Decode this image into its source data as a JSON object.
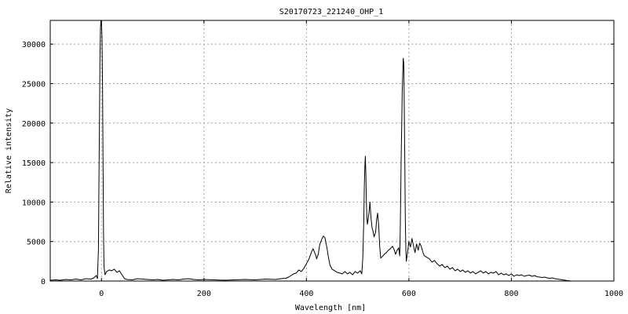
{
  "chart_data": {
    "type": "line",
    "title": "S20170723_221240_OHP_1",
    "xlabel": "Wavelength [nm]",
    "ylabel": "Relative intensity",
    "xlim": [
      -100,
      1000
    ],
    "ylim": [
      0,
      33000
    ],
    "grid": true,
    "x_ticks": [
      0,
      200,
      400,
      600,
      800,
      1000
    ],
    "y_ticks": [
      0,
      5000,
      10000,
      15000,
      20000,
      25000,
      30000
    ],
    "series": [
      {
        "color": "#000000",
        "points": [
          [
            -100,
            100
          ],
          [
            -90,
            150
          ],
          [
            -80,
            100
          ],
          [
            -70,
            200
          ],
          [
            -60,
            150
          ],
          [
            -50,
            250
          ],
          [
            -40,
            150
          ],
          [
            -30,
            300
          ],
          [
            -20,
            250
          ],
          [
            -15,
            400
          ],
          [
            -10,
            700
          ],
          [
            -8,
            300
          ],
          [
            -6,
            4000
          ],
          [
            -5,
            12000
          ],
          [
            -4,
            20000
          ],
          [
            -3,
            28000
          ],
          [
            -2,
            32000
          ],
          [
            -1,
            33000
          ],
          [
            0,
            32500
          ],
          [
            1,
            31000
          ],
          [
            2,
            25000
          ],
          [
            3,
            16000
          ],
          [
            4,
            6000
          ],
          [
            5,
            1800
          ],
          [
            7,
            800
          ],
          [
            10,
            1200
          ],
          [
            15,
            1400
          ],
          [
            20,
            1300
          ],
          [
            25,
            1500
          ],
          [
            30,
            1100
          ],
          [
            35,
            1300
          ],
          [
            40,
            800
          ],
          [
            45,
            300
          ],
          [
            50,
            200
          ],
          [
            60,
            150
          ],
          [
            70,
            300
          ],
          [
            80,
            250
          ],
          [
            90,
            200
          ],
          [
            100,
            150
          ],
          [
            110,
            200
          ],
          [
            120,
            100
          ],
          [
            130,
            150
          ],
          [
            140,
            200
          ],
          [
            150,
            150
          ],
          [
            160,
            250
          ],
          [
            170,
            300
          ],
          [
            180,
            200
          ],
          [
            190,
            150
          ],
          [
            200,
            200
          ],
          [
            220,
            150
          ],
          [
            240,
            100
          ],
          [
            260,
            150
          ],
          [
            280,
            200
          ],
          [
            300,
            150
          ],
          [
            320,
            250
          ],
          [
            340,
            200
          ],
          [
            350,
            300
          ],
          [
            360,
            350
          ],
          [
            365,
            500
          ],
          [
            370,
            700
          ],
          [
            375,
            900
          ],
          [
            380,
            1000
          ],
          [
            385,
            1400
          ],
          [
            390,
            1200
          ],
          [
            395,
            1600
          ],
          [
            400,
            2200
          ],
          [
            405,
            2800
          ],
          [
            410,
            3700
          ],
          [
            413,
            4100
          ],
          [
            416,
            3600
          ],
          [
            418,
            3300
          ],
          [
            420,
            2800
          ],
          [
            423,
            3400
          ],
          [
            426,
            4600
          ],
          [
            430,
            5300
          ],
          [
            433,
            5700
          ],
          [
            436,
            5500
          ],
          [
            440,
            4200
          ],
          [
            443,
            3000
          ],
          [
            446,
            2000
          ],
          [
            450,
            1500
          ],
          [
            455,
            1300
          ],
          [
            460,
            1100
          ],
          [
            465,
            1000
          ],
          [
            470,
            900
          ],
          [
            475,
            1200
          ],
          [
            480,
            900
          ],
          [
            485,
            1100
          ],
          [
            490,
            800
          ],
          [
            495,
            1200
          ],
          [
            500,
            1000
          ],
          [
            505,
            1300
          ],
          [
            508,
            900
          ],
          [
            510,
            3000
          ],
          [
            512,
            8000
          ],
          [
            513,
            12000
          ],
          [
            514,
            14500
          ],
          [
            515,
            15800
          ],
          [
            516,
            13500
          ],
          [
            517,
            10000
          ],
          [
            518,
            8000
          ],
          [
            519,
            7200
          ],
          [
            520,
            7600
          ],
          [
            522,
            8600
          ],
          [
            524,
            10000
          ],
          [
            526,
            8000
          ],
          [
            528,
            6800
          ],
          [
            530,
            6300
          ],
          [
            532,
            5600
          ],
          [
            535,
            6200
          ],
          [
            537,
            7800
          ],
          [
            539,
            8600
          ],
          [
            541,
            7000
          ],
          [
            543,
            4400
          ],
          [
            545,
            2900
          ],
          [
            548,
            3100
          ],
          [
            552,
            3400
          ],
          [
            556,
            3600
          ],
          [
            560,
            3900
          ],
          [
            564,
            4100
          ],
          [
            568,
            4400
          ],
          [
            571,
            4000
          ],
          [
            574,
            3400
          ],
          [
            577,
            3900
          ],
          [
            580,
            4200
          ],
          [
            582,
            3200
          ],
          [
            583,
            6000
          ],
          [
            584,
            11000
          ],
          [
            585,
            16000
          ],
          [
            586,
            20000
          ],
          [
            587,
            24000
          ],
          [
            588,
            26500
          ],
          [
            589,
            28200
          ],
          [
            590,
            27500
          ],
          [
            591,
            22000
          ],
          [
            592,
            15000
          ],
          [
            593,
            8000
          ],
          [
            594,
            4000
          ],
          [
            595,
            2500
          ],
          [
            597,
            3500
          ],
          [
            600,
            5000
          ],
          [
            603,
            4300
          ],
          [
            606,
            5400
          ],
          [
            609,
            4400
          ],
          [
            612,
            3600
          ],
          [
            615,
            4700
          ],
          [
            618,
            3900
          ],
          [
            621,
            4800
          ],
          [
            624,
            4400
          ],
          [
            627,
            3700
          ],
          [
            630,
            3200
          ],
          [
            635,
            3000
          ],
          [
            640,
            2800
          ],
          [
            645,
            2400
          ],
          [
            650,
            2600
          ],
          [
            655,
            2200
          ],
          [
            660,
            1900
          ],
          [
            665,
            2100
          ],
          [
            670,
            1700
          ],
          [
            675,
            1900
          ],
          [
            680,
            1500
          ],
          [
            685,
            1700
          ],
          [
            690,
            1300
          ],
          [
            695,
            1500
          ],
          [
            700,
            1200
          ],
          [
            705,
            1400
          ],
          [
            710,
            1100
          ],
          [
            715,
            1300
          ],
          [
            720,
            1000
          ],
          [
            725,
            1200
          ],
          [
            730,
            900
          ],
          [
            735,
            1100
          ],
          [
            740,
            1300
          ],
          [
            745,
            1000
          ],
          [
            750,
            1200
          ],
          [
            755,
            900
          ],
          [
            760,
            1100
          ],
          [
            765,
            1000
          ],
          [
            770,
            1200
          ],
          [
            775,
            800
          ],
          [
            780,
            1000
          ],
          [
            785,
            800
          ],
          [
            790,
            900
          ],
          [
            795,
            700
          ],
          [
            800,
            900
          ],
          [
            805,
            600
          ],
          [
            810,
            800
          ],
          [
            815,
            700
          ],
          [
            820,
            800
          ],
          [
            825,
            600
          ],
          [
            830,
            700
          ],
          [
            835,
            750
          ],
          [
            840,
            600
          ],
          [
            845,
            700
          ],
          [
            850,
            550
          ],
          [
            855,
            500
          ],
          [
            860,
            450
          ],
          [
            865,
            500
          ],
          [
            870,
            400
          ],
          [
            875,
            350
          ],
          [
            880,
            400
          ],
          [
            885,
            300
          ],
          [
            890,
            250
          ],
          [
            895,
            200
          ],
          [
            900,
            150
          ],
          [
            905,
            100
          ],
          [
            910,
            50
          ],
          [
            915,
            20
          ]
        ]
      }
    ]
  }
}
